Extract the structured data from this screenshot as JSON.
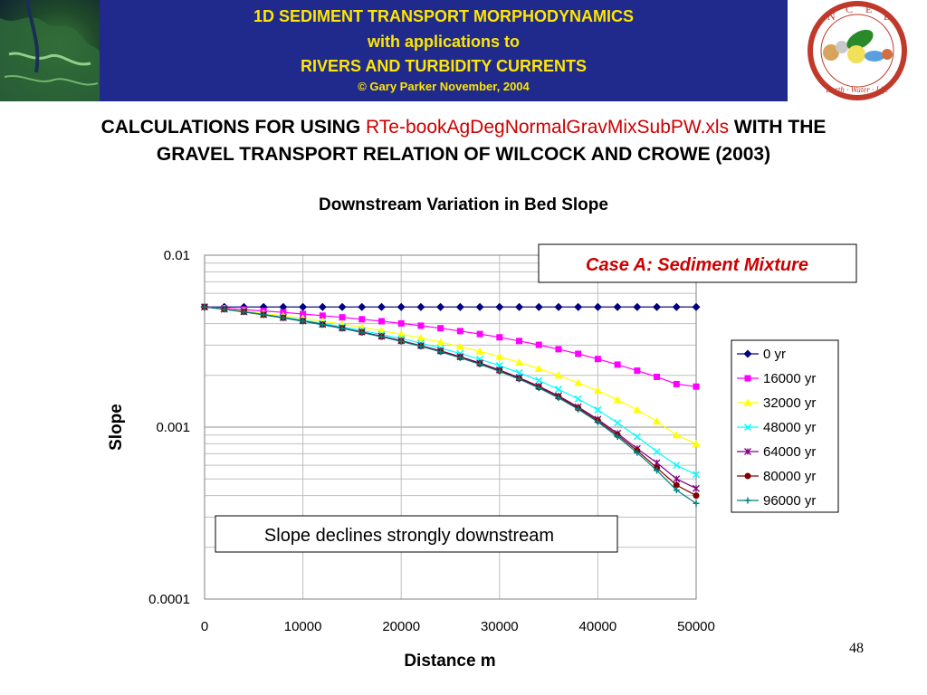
{
  "banner": {
    "line1": "1D SEDIMENT TRANSPORT MORPHODYNAMICS",
    "line2": "with applications to",
    "line3": "RIVERS AND TURBIDITY CURRENTS",
    "line4": "© Gary Parker November, 2004",
    "logo_letters": [
      "N",
      "C",
      "E",
      "D"
    ],
    "logo_motto": "Earth · Water · Life"
  },
  "heading": {
    "part1": "CALCULATIONS FOR USING ",
    "filename": "RTe-bookAgDegNormalGravMixSubPW.xls",
    "part2": "  WITH THE",
    "line2": "GRAVEL TRANSPORT RELATION OF WILCOCK AND CROWE (2003)"
  },
  "colors": {
    "banner_bg": "#1f2a8c",
    "banner_text": "#ffe600",
    "filename": "#cc0000",
    "case_label": "#cc0000"
  },
  "chart_data": {
    "type": "line",
    "title": "Downstream Variation in Bed Slope",
    "xlabel": "Distance m",
    "ylabel": "Slope",
    "yscale": "log",
    "xlim": [
      0,
      50000
    ],
    "ylim": [
      0.0001,
      0.01
    ],
    "xticks": [
      "0",
      "10000",
      "20000",
      "30000",
      "40000",
      "50000"
    ],
    "yticks": [
      "0.01",
      "0.001",
      "0.0001"
    ],
    "grid": true,
    "legend_position": "right",
    "annotations": {
      "case": "Case A: Sediment Mixture",
      "note": "Slope declines strongly downstream"
    },
    "x": [
      0,
      2000,
      4000,
      6000,
      8000,
      10000,
      12000,
      14000,
      16000,
      18000,
      20000,
      22000,
      24000,
      26000,
      28000,
      30000,
      32000,
      34000,
      36000,
      38000,
      40000,
      42000,
      44000,
      46000,
      48000,
      50000
    ],
    "series": [
      {
        "name": "0 yr",
        "color": "#000080",
        "marker": "diamond",
        "values": [
          0.005,
          0.005,
          0.005,
          0.005,
          0.005,
          0.005,
          0.005,
          0.005,
          0.005,
          0.005,
          0.005,
          0.005,
          0.005,
          0.005,
          0.005,
          0.005,
          0.005,
          0.005,
          0.005,
          0.005,
          0.005,
          0.005,
          0.005,
          0.005,
          0.005,
          0.005
        ]
      },
      {
        "name": "16000 yr",
        "color": "#ff00ff",
        "marker": "square",
        "values": [
          0.005,
          0.00492,
          0.00483,
          0.00474,
          0.00465,
          0.00455,
          0.00445,
          0.00435,
          0.00424,
          0.00413,
          0.00401,
          0.00389,
          0.00376,
          0.00362,
          0.00348,
          0.00333,
          0.00317,
          0.00301,
          0.00284,
          0.00267,
          0.00249,
          0.00231,
          0.00213,
          0.00196,
          0.00178,
          0.00172
        ]
      },
      {
        "name": "32000 yr",
        "color": "#ffff00",
        "marker": "triangle",
        "values": [
          0.005,
          0.00488,
          0.00474,
          0.00459,
          0.00444,
          0.00429,
          0.00413,
          0.00397,
          0.00381,
          0.00364,
          0.00347,
          0.0033,
          0.00312,
          0.00294,
          0.00276,
          0.00257,
          0.00238,
          0.00219,
          0.002,
          0.00181,
          0.00163,
          0.00144,
          0.00126,
          0.00108,
          0.0009,
          0.0008
        ]
      },
      {
        "name": "48000 yr",
        "color": "#00ffff",
        "marker": "x",
        "values": [
          0.005,
          0.00486,
          0.0047,
          0.00453,
          0.00436,
          0.00419,
          0.00401,
          0.00383,
          0.00365,
          0.00346,
          0.00327,
          0.00308,
          0.00288,
          0.00268,
          0.00248,
          0.00228,
          0.00207,
          0.00187,
          0.00166,
          0.00146,
          0.00126,
          0.00106,
          0.00088,
          0.00072,
          0.0006,
          0.00053
        ]
      },
      {
        "name": "64000 yr",
        "color": "#800080",
        "marker": "star",
        "values": [
          0.005,
          0.00485,
          0.00469,
          0.00451,
          0.00433,
          0.00415,
          0.00396,
          0.00377,
          0.00358,
          0.00338,
          0.00318,
          0.00298,
          0.00278,
          0.00257,
          0.00236,
          0.00215,
          0.00194,
          0.00173,
          0.00152,
          0.00131,
          0.00111,
          0.00092,
          0.00075,
          0.00062,
          0.0005,
          0.00044
        ]
      },
      {
        "name": "80000 yr",
        "color": "#800000",
        "marker": "circle",
        "values": [
          0.005,
          0.00485,
          0.00468,
          0.0045,
          0.00432,
          0.00414,
          0.00395,
          0.00376,
          0.00356,
          0.00336,
          0.00316,
          0.00296,
          0.00276,
          0.00255,
          0.00234,
          0.00213,
          0.00192,
          0.00171,
          0.0015,
          0.00129,
          0.00109,
          0.0009,
          0.00073,
          0.00058,
          0.00046,
          0.0004
        ]
      },
      {
        "name": "96000 yr",
        "color": "#008080",
        "marker": "plus",
        "values": [
          0.005,
          0.00485,
          0.00468,
          0.0045,
          0.00432,
          0.00413,
          0.00394,
          0.00375,
          0.00355,
          0.00335,
          0.00315,
          0.00295,
          0.00274,
          0.00253,
          0.00232,
          0.00211,
          0.0019,
          0.00169,
          0.00148,
          0.00127,
          0.00107,
          0.00088,
          0.00071,
          0.00056,
          0.00043,
          0.00036
        ]
      }
    ]
  },
  "page_number": "48"
}
